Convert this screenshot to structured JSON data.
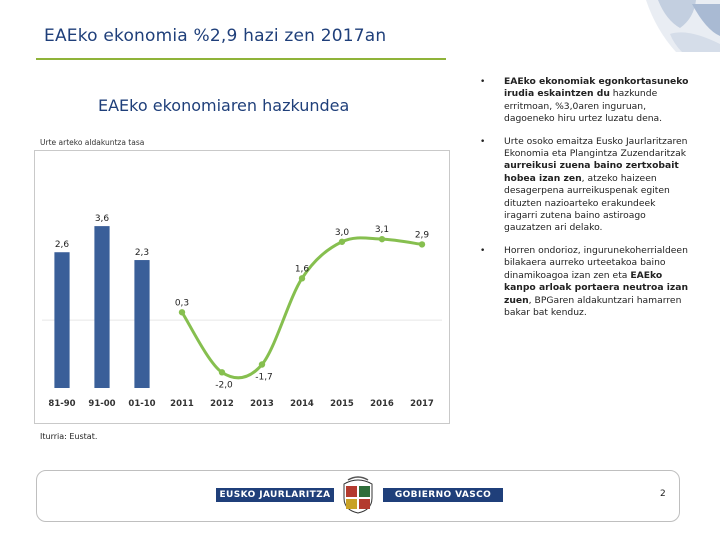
{
  "slide": {
    "title": "EAEko ekonomia %2,9 hazi zen 2017an",
    "page_number": "2"
  },
  "colors": {
    "title": "#1f3f7a",
    "title_rule": "#8fb339",
    "bar": "#3a5f99",
    "line": "#86bf4f"
  },
  "chart_data": {
    "type": "bar+line",
    "title": "EAEko ekonomiaren hazkundea",
    "subtitle": "Urte arteko aldakuntza tasa",
    "categories": [
      "81-90",
      "91-00",
      "01-10",
      "2011",
      "2012",
      "2013",
      "2014",
      "2015",
      "2016",
      "2017"
    ],
    "bars": {
      "categories": [
        "81-90",
        "91-00",
        "01-10"
      ],
      "values": [
        2.6,
        3.6,
        2.3
      ],
      "labels": [
        "2,6",
        "3,6",
        "2,3"
      ]
    },
    "line": {
      "categories": [
        "2011",
        "2012",
        "2013",
        "2014",
        "2015",
        "2016",
        "2017"
      ],
      "values": [
        0.3,
        -2.0,
        -1.7,
        1.6,
        3.0,
        3.1,
        2.9
      ],
      "labels": [
        "0,3",
        "-2,0",
        "-1,7",
        "1,6",
        "3,0",
        "3,1",
        "2,9"
      ]
    },
    "ylim": [
      -2.6,
      4.6
    ],
    "grid": false,
    "legend": "none",
    "source": "Iturria: Eustat."
  },
  "bullets": [
    {
      "parts": [
        {
          "text": "EAEko ekonomiak egonkortasuneko irudia eskaintzen du",
          "bold": true
        },
        {
          "text": " hazkunde erritmoan, %3,0aren inguruan, dagoeneko hiru urtez luzatu dena.",
          "bold": false
        }
      ]
    },
    {
      "parts": [
        {
          "text": "Urte osoko emaitza Eusko Jaurlaritzaren Ekonomia eta Plangintza Zuzendaritzak ",
          "bold": false
        },
        {
          "text": "aurreikusi zuena baino zertxobait hobea izan zen",
          "bold": true
        },
        {
          "text": ", atzeko haizeen desagerpena aurreikuspenak egiten dituzten nazioarteko erakundeek iragarri zutena baino astiroago gauzatzen ari delako.",
          "bold": false
        }
      ]
    },
    {
      "parts": [
        {
          "text": "Horren ondorioz, ingurunekoherrialdeen bilakaera aurreko urteetakoa baino dinamikoagoa izan zen eta ",
          "bold": false
        },
        {
          "text": "EAEko kanpo arloak portaera neutroa izan zuen",
          "bold": true
        },
        {
          "text": ", BPGaren aldakuntzari hamarren bakar bat kenduz.",
          "bold": false
        }
      ]
    }
  ],
  "footer": {
    "left_label": "EUSKO JAURLARITZA",
    "right_label": "GOBIERNO VASCO"
  }
}
